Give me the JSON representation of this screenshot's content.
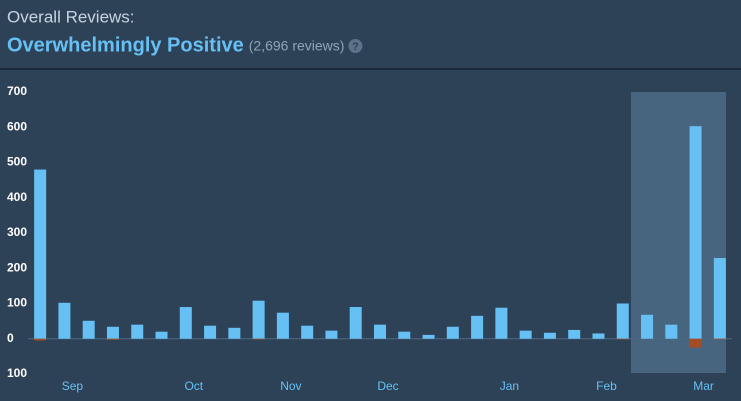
{
  "chart_data": {
    "type": "bar",
    "title": "Overall Reviews:",
    "subtitle": "Overwhelmingly Positive",
    "annotation": "(2,696 reviews)",
    "help_icon": "?",
    "categories": [
      null,
      "Sep",
      null,
      null,
      null,
      null,
      "Oct",
      null,
      null,
      null,
      "Nov",
      null,
      null,
      null,
      "Dec",
      null,
      null,
      null,
      null,
      "Jan",
      null,
      null,
      null,
      "Feb",
      null,
      null,
      null,
      "Mar",
      null
    ],
    "series": [
      {
        "color": "#66c0f4",
        "values": [
          480,
          102,
          51,
          34,
          40,
          20,
          90,
          37,
          31,
          108,
          74,
          37,
          23,
          90,
          40,
          20,
          11,
          34,
          65,
          88,
          23,
          17,
          25,
          15,
          100,
          68,
          40,
          603,
          229
        ]
      },
      {
        "color": "#a34c25",
        "values": [
          -5,
          0,
          0,
          -3,
          0,
          0,
          0,
          0,
          0,
          -2,
          0,
          0,
          0,
          0,
          0,
          0,
          0,
          0,
          0,
          0,
          0,
          0,
          0,
          0,
          -2,
          0,
          0,
          -25,
          -2
        ]
      }
    ],
    "ylim": [
      -100,
      700
    ],
    "yticks": [
      {
        "value": -100,
        "label": "100"
      },
      0,
      100,
      200,
      300,
      400,
      500,
      600,
      700
    ]
  }
}
